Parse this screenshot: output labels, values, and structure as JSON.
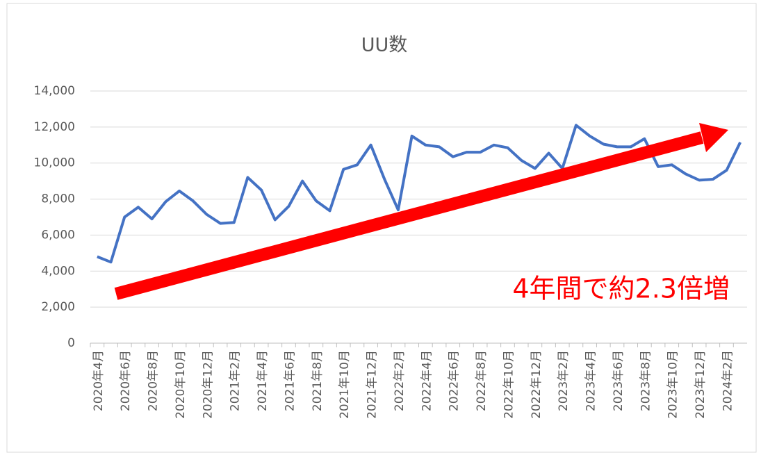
{
  "chart_data": {
    "type": "line",
    "title": "UU数",
    "categories": [
      "2020年4月",
      null,
      "2020年6月",
      null,
      "2020年8月",
      null,
      "2020年10月",
      null,
      "2020年12月",
      null,
      "2021年2月",
      null,
      "2021年4月",
      null,
      "2021年6月",
      null,
      "2021年8月",
      null,
      "2021年10月",
      null,
      "2021年12月",
      null,
      "2022年2月",
      null,
      "2022年4月",
      null,
      "2022年6月",
      null,
      "2022年8月",
      null,
      "2022年10月",
      null,
      "2022年12月",
      null,
      "2023年2月",
      null,
      "2023年4月",
      null,
      "2023年6月",
      null,
      "2023年8月",
      null,
      "2023年10月",
      null,
      "2023年12月",
      null,
      "2024年2月",
      null
    ],
    "series": [
      {
        "name": "UU数",
        "color": "#4472c4",
        "values": [
          4800,
          4500,
          7000,
          7550,
          6900,
          7850,
          8450,
          7900,
          7150,
          6650,
          6700,
          9200,
          8500,
          6850,
          7600,
          9000,
          7900,
          7350,
          9650,
          9900,
          11000,
          9100,
          7400,
          11500,
          11000,
          10900,
          10350,
          10600,
          10600,
          11000,
          10850,
          10150,
          9700,
          10550,
          9700,
          12100,
          11500,
          11050,
          10900,
          10900,
          11350,
          9800,
          9900,
          9400,
          9050,
          9100,
          9600,
          11150
        ]
      }
    ],
    "ylim": [
      0,
      14000
    ],
    "yticks": [
      0,
      {
        "value": 2000,
        "label": "2,000"
      },
      {
        "value": 4000,
        "label": "4,000"
      },
      {
        "value": 6000,
        "label": "6,000"
      },
      {
        "value": 8000,
        "label": "8,000"
      },
      {
        "value": 10000,
        "label": "10,000"
      },
      {
        "value": 12000,
        "label": "12,000"
      },
      {
        "value": 14000,
        "label": "14,000"
      }
    ],
    "grid": true,
    "annotation": "4年間で約2.3倍増"
  }
}
